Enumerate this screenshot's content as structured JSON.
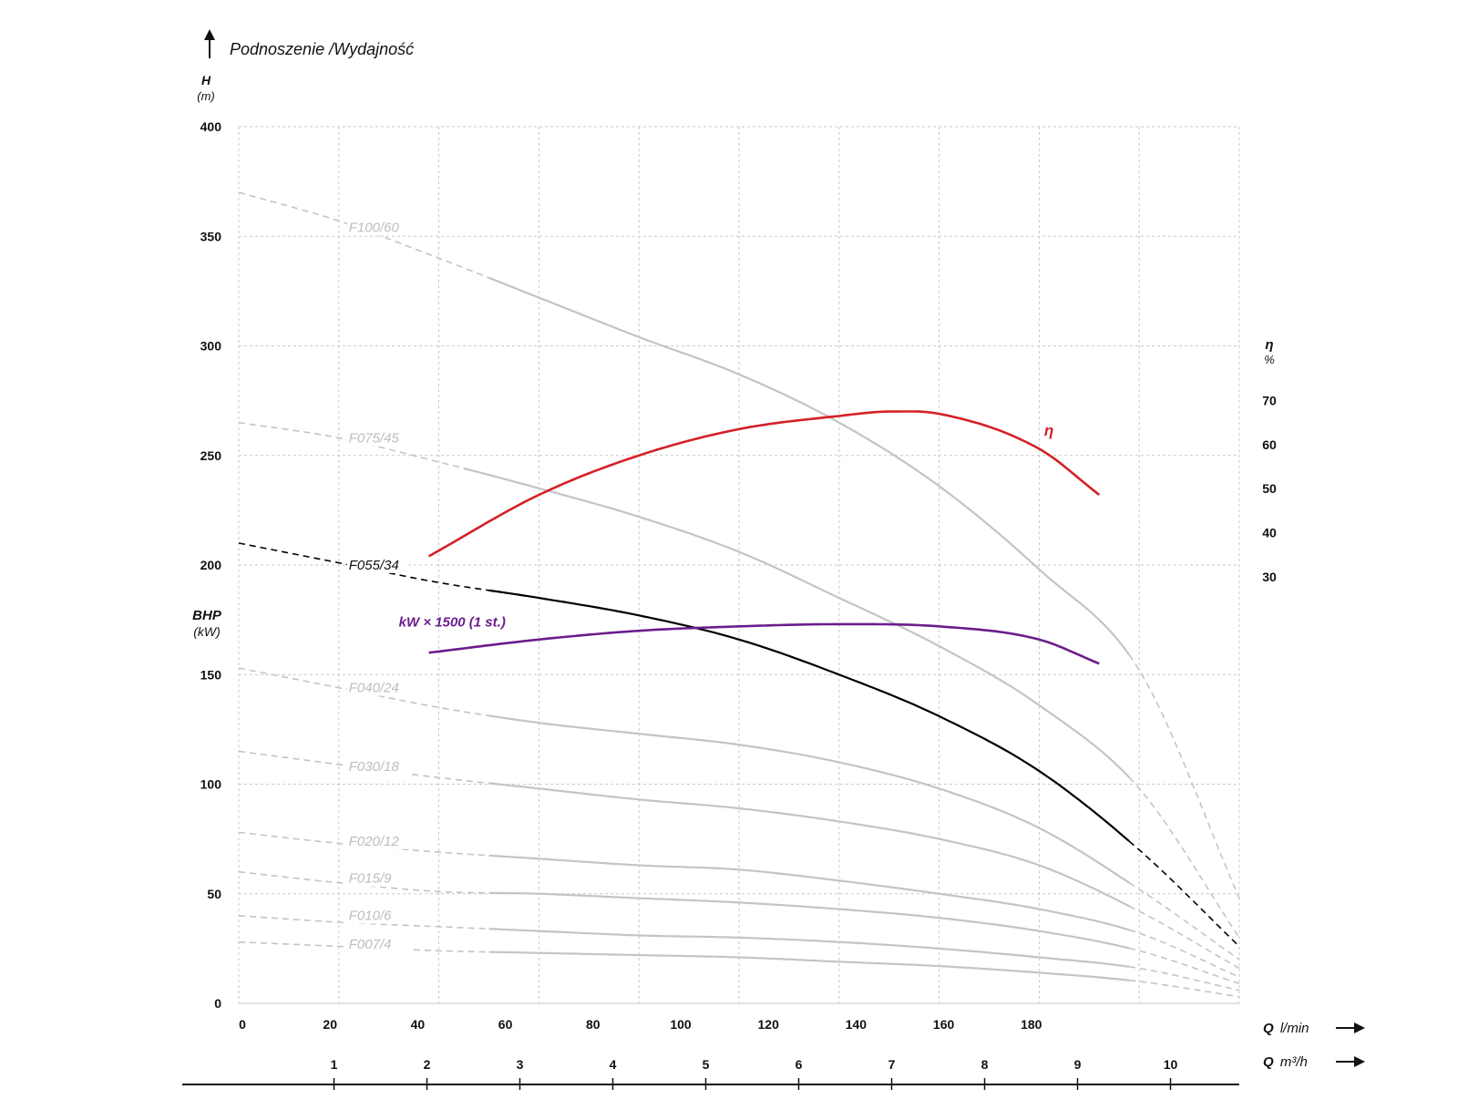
{
  "chart_data": {
    "type": "line",
    "title": "Podnoszenie /Wydajność",
    "y_left": {
      "label": "H",
      "unit": "(m)",
      "range": [
        0,
        400
      ],
      "ticks": [
        0,
        50,
        100,
        150,
        200,
        250,
        300,
        350,
        400
      ]
    },
    "y_power": {
      "label": "BHP",
      "unit": "(kW)"
    },
    "y_right": {
      "label": "η",
      "unit": "%",
      "ticks": [
        30,
        40,
        50,
        60,
        70
      ]
    },
    "x_lmin": {
      "label": "Q",
      "unit": "l/min",
      "range": [
        0,
        200
      ],
      "ticks": [
        0,
        20,
        40,
        60,
        80,
        100,
        120,
        140,
        160,
        180
      ]
    },
    "x_m3h": {
      "label": "Q",
      "unit": "m³/h",
      "ticks": [
        1,
        2,
        3,
        4,
        5,
        6,
        7,
        8,
        9,
        10
      ]
    },
    "grid": true,
    "series": [
      {
        "name": "F100/60",
        "color": "#c4c4c4",
        "label_at": [
          22,
          352
        ],
        "dash_start": 50,
        "solid_end": 178,
        "x": [
          0,
          20,
          40,
          60,
          80,
          100,
          120,
          140,
          160,
          180,
          200
        ],
        "y": [
          370,
          357,
          340,
          322,
          304,
          287,
          265,
          236,
          198,
          152,
          48
        ]
      },
      {
        "name": "F075/45",
        "color": "#c4c4c4",
        "label_at": [
          22,
          256
        ],
        "dash_start": 45,
        "solid_end": 178,
        "x": [
          0,
          20,
          40,
          60,
          80,
          100,
          120,
          140,
          160,
          180,
          200
        ],
        "y": [
          265,
          258,
          247,
          235,
          222,
          206,
          185,
          163,
          136,
          98,
          30
        ]
      },
      {
        "name": "F055/34",
        "color": "#000000",
        "label_at": [
          22,
          198
        ],
        "dash_start": 50,
        "solid_end": 178,
        "x": [
          0,
          20,
          40,
          60,
          80,
          100,
          120,
          140,
          160,
          180,
          200
        ],
        "y": [
          210,
          201,
          192,
          185,
          177,
          166,
          150,
          131,
          106,
          70,
          26
        ]
      },
      {
        "name": "F040/24",
        "color": "#c4c4c4",
        "label_at": [
          22,
          142
        ],
        "dash_start": 50,
        "solid_end": 178,
        "x": [
          0,
          20,
          40,
          60,
          80,
          100,
          120,
          140,
          160,
          180,
          200
        ],
        "y": [
          153,
          144,
          135,
          128,
          123,
          118,
          110,
          98,
          80,
          52,
          20
        ]
      },
      {
        "name": "F030/18",
        "color": "#c4c4c4",
        "label_at": [
          22,
          106
        ],
        "dash_start": 50,
        "solid_end": 178,
        "x": [
          0,
          20,
          40,
          60,
          80,
          100,
          120,
          140,
          160,
          180,
          200
        ],
        "y": [
          115,
          109,
          103,
          98,
          93,
          89,
          83,
          75,
          63,
          42,
          16
        ]
      },
      {
        "name": "F020/12",
        "color": "#c4c4c4",
        "label_at": [
          22,
          72
        ],
        "dash_start": 50,
        "solid_end": 178,
        "x": [
          0,
          20,
          40,
          60,
          80,
          100,
          120,
          140,
          160,
          180,
          200
        ],
        "y": [
          78,
          73,
          69,
          66,
          63,
          61,
          56,
          50,
          43,
          32,
          12
        ]
      },
      {
        "name": "F015/9",
        "color": "#c4c4c4",
        "label_at": [
          22,
          55
        ],
        "dash_start": 50,
        "solid_end": 178,
        "x": [
          0,
          20,
          40,
          60,
          80,
          100,
          120,
          140,
          160,
          180,
          200
        ],
        "y": [
          60,
          55,
          51,
          50,
          48,
          46,
          43,
          39,
          33,
          24,
          9
        ]
      },
      {
        "name": "F010/6",
        "color": "#c4c4c4",
        "label_at": [
          22,
          38
        ],
        "dash_start": 50,
        "solid_end": 178,
        "x": [
          0,
          20,
          40,
          60,
          80,
          100,
          120,
          140,
          160,
          180,
          200
        ],
        "y": [
          40,
          37,
          35,
          33,
          31,
          30,
          28,
          25,
          21,
          16,
          6
        ]
      },
      {
        "name": "F007/4",
        "color": "#c4c4c4",
        "label_at": [
          22,
          25
        ],
        "dash_start": 50,
        "solid_end": 178,
        "x": [
          0,
          20,
          40,
          60,
          80,
          100,
          120,
          140,
          160,
          180,
          200
        ],
        "y": [
          28,
          26,
          24,
          23,
          22,
          21,
          19,
          17,
          14,
          10,
          3
        ]
      }
    ],
    "efficiency": {
      "name": "η",
      "color": "#d52027",
      "label_at": [
        161,
        259
      ],
      "x": [
        38,
        60,
        80,
        100,
        120,
        130,
        140,
        160,
        172
      ],
      "y": [
        204,
        232,
        250,
        262,
        268,
        270,
        269,
        253,
        232
      ]
    },
    "power": {
      "name": "kW × 1500 (1 st.)",
      "color": "#6b1d8c",
      "label_at": [
        32,
        172
      ],
      "x": [
        38,
        60,
        80,
        100,
        120,
        140,
        160,
        172
      ],
      "y": [
        160,
        166,
        170,
        172,
        173,
        172,
        166,
        155
      ]
    }
  }
}
